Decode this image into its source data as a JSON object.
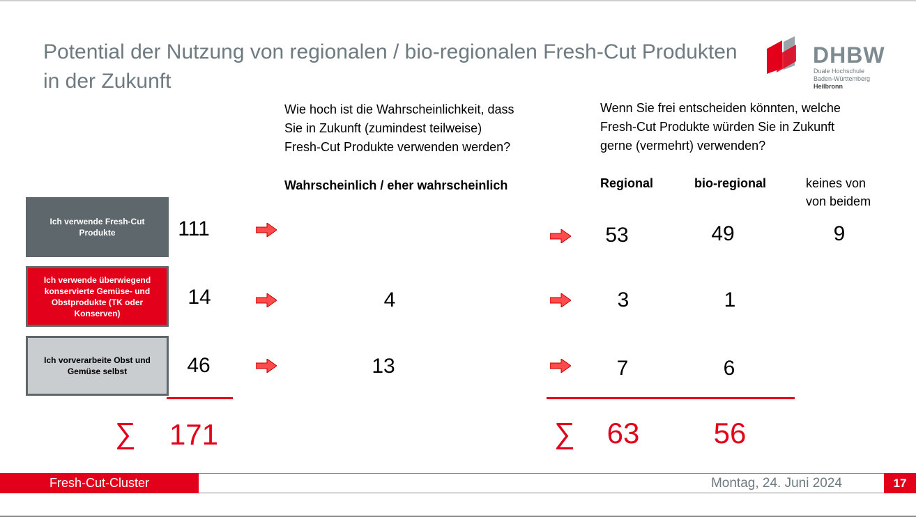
{
  "title": "Potential der Nutzung von regionalen / bio-regionalen Fresh-Cut Produkten in der Zukunft",
  "logo": {
    "name": "DHBW",
    "line1": "Duale Hochschule",
    "line2": "Baden-Württemberg",
    "line3": "Heilbronn"
  },
  "question1": {
    "line1": "Wie hoch ist die Wahrscheinlichkeit, dass",
    "line2": "Sie in Zukunft (zumindest teilweise)",
    "line3": "Fresh-Cut Produkte verwenden werden?",
    "header": "Wahrscheinlich / eher wahrscheinlich"
  },
  "question2": {
    "line1": "Wenn Sie frei entscheiden könnten, welche",
    "line2": "Fresh-Cut Produkte würden Sie in Zukunft",
    "line3": "gerne (vermehrt) verwenden?",
    "col_regional": "Regional",
    "col_bio": "bio-regional",
    "col_none_1": "keines von",
    "col_none_2": "von beidem"
  },
  "rows": [
    {
      "label": "Ich verwende Fresh-Cut Produkte",
      "count": "111",
      "likely": "",
      "regional": "53",
      "bio": "49",
      "none": "9"
    },
    {
      "label": "Ich verwende überwiegend konservierte Gemüse- und Obstprodukte (TK oder Konserven)",
      "count": "14",
      "likely": "4",
      "regional": "3",
      "bio": "1",
      "none": ""
    },
    {
      "label": "Ich vorverarbeite Obst  und Gemüse selbst",
      "count": "46",
      "likely": "13",
      "regional": "7",
      "bio": "6",
      "none": ""
    }
  ],
  "sums": {
    "symbol": "∑",
    "count": "171",
    "regional": "63",
    "bio": "56"
  },
  "footer": {
    "left": "Fresh-Cut-Cluster",
    "date": "Montag, 24. Juni 2024",
    "page": "17"
  },
  "colors": {
    "accent_red": "#e2001a",
    "dark_gray": "#5e676b",
    "light_gray": "#c9cdd0",
    "title_gray": "#6d7a80"
  }
}
